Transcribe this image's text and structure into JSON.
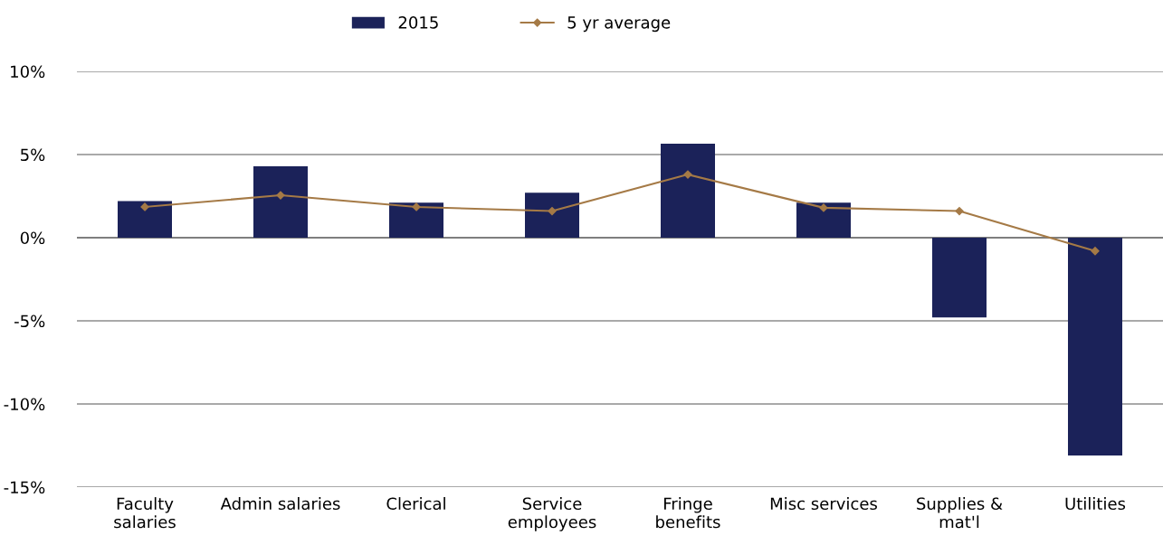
{
  "chart_data": {
    "type": "bar",
    "categories": [
      "Faculty\nsalaries",
      "Admin salaries",
      "Clerical",
      "Service\nemployees",
      "Fringe\nbenefits",
      "Misc services",
      "Supplies &\nmat'l",
      "Utilities"
    ],
    "series": [
      {
        "name": "2015",
        "color": "#1b2259",
        "values": [
          2.2,
          4.3,
          2.1,
          2.7,
          5.65,
          2.1,
          -4.8,
          -13.1
        ]
      },
      {
        "name": "5 yr average",
        "type": "line",
        "color": "#a57a46",
        "marker": "diamond",
        "values": [
          1.85,
          2.55,
          1.85,
          1.6,
          3.8,
          1.8,
          1.6,
          -0.8
        ]
      }
    ],
    "ylim": [
      -15,
      10
    ],
    "yticks": [
      {
        "value": -15,
        "label": "-15%"
      },
      {
        "value": -10,
        "label": "-10%"
      },
      {
        "value": -5,
        "label": "-5%"
      },
      {
        "value": 0,
        "label": "0%"
      },
      {
        "value": 5,
        "label": "5%"
      },
      {
        "value": 10,
        "label": "10%"
      }
    ],
    "grid": "y",
    "legend": "top"
  }
}
